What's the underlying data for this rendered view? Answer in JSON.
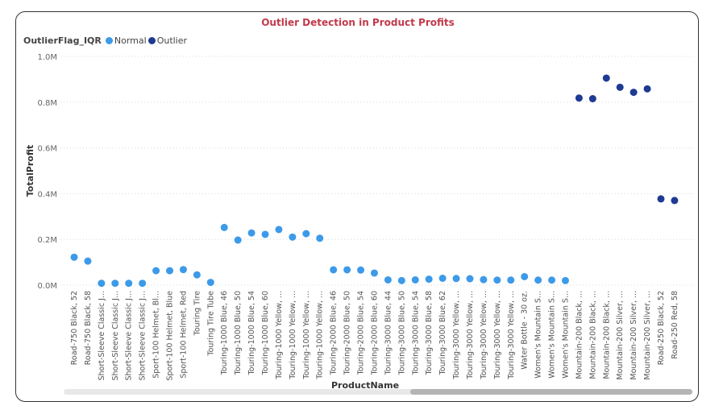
{
  "legend": {
    "title": "OutlierFlag_IQR",
    "items": [
      {
        "label": "Normal",
        "color": "#3c9ae8"
      },
      {
        "label": "Outlier",
        "color": "#1f3a93"
      }
    ]
  },
  "chart_data": {
    "type": "scatter",
    "title": "Outlier Detection in Product Profits",
    "xlabel": "ProductName",
    "ylabel": "TotalProfit",
    "ylim": [
      0,
      1000000
    ],
    "yticks": [
      0,
      200000,
      400000,
      600000,
      800000,
      1000000
    ],
    "ytick_labels": [
      "0.0M",
      "0.2M",
      "0.4M",
      "0.6M",
      "0.8M",
      "1.0M"
    ],
    "grid": true,
    "legend_position": "top-left",
    "categories": [
      "Road-750 Black, 52",
      "Road-750 Black, 58",
      "Short-Sleeve Classic J...",
      "Short-Sleeve Classic J...",
      "Short-Sleeve Classic J...",
      "Short-Sleeve Classic J...",
      "Sport-100 Helmet, Bl...",
      "Sport-100 Helmet, Blue",
      "Sport-100 Helmet, Red",
      "Touring Tire",
      "Touring Tire Tube",
      "Touring-1000 Blue, 46",
      "Touring-1000 Blue, 50",
      "Touring-1000 Blue, 54",
      "Touring-1000 Blue, 60",
      "Touring-1000 Yellow, ...",
      "Touring-1000 Yellow, ...",
      "Touring-1000 Yellow, ...",
      "Touring-1000 Yellow, ...",
      "Touring-2000 Blue, 46",
      "Touring-2000 Blue, 50",
      "Touring-2000 Blue, 54",
      "Touring-2000 Blue, 60",
      "Touring-3000 Blue, 44",
      "Touring-3000 Blue, 50",
      "Touring-3000 Blue, 54",
      "Touring-3000 Blue, 58",
      "Touring-3000 Blue, 62",
      "Touring-3000 Yellow, ...",
      "Touring-3000 Yellow, ...",
      "Touring-3000 Yellow, ...",
      "Touring-3000 Yellow, ...",
      "Touring-3000 Yellow, ...",
      "Water Bottle - 30 oz.",
      "Women's Mountain S...",
      "Women's Mountain S...",
      "Women's Mountain S...",
      "Mountain-200 Black, ...",
      "Mountain-200 Black, ...",
      "Mountain-200 Black, ...",
      "Mountain-200 Silver, ...",
      "Mountain-200 Silver, ...",
      "Mountain-200 Silver, ...",
      "Road-250 Black, 52",
      "Road-250 Red, 58"
    ],
    "values": [
      122000,
      105000,
      8000,
      8000,
      8000,
      8000,
      63000,
      63000,
      68000,
      45000,
      12000,
      252000,
      197000,
      228000,
      222000,
      243000,
      210000,
      225000,
      205000,
      67000,
      67000,
      66000,
      53000,
      23000,
      20000,
      23000,
      26000,
      30000,
      29000,
      28000,
      24000,
      22000,
      22000,
      37000,
      22000,
      22000,
      20000,
      818000,
      815000,
      905000,
      865000,
      843000,
      858000,
      377000,
      370000
    ],
    "flags": [
      "Normal",
      "Normal",
      "Normal",
      "Normal",
      "Normal",
      "Normal",
      "Normal",
      "Normal",
      "Normal",
      "Normal",
      "Normal",
      "Normal",
      "Normal",
      "Normal",
      "Normal",
      "Normal",
      "Normal",
      "Normal",
      "Normal",
      "Normal",
      "Normal",
      "Normal",
      "Normal",
      "Normal",
      "Normal",
      "Normal",
      "Normal",
      "Normal",
      "Normal",
      "Normal",
      "Normal",
      "Normal",
      "Normal",
      "Normal",
      "Normal",
      "Normal",
      "Normal",
      "Outlier",
      "Outlier",
      "Outlier",
      "Outlier",
      "Outlier",
      "Outlier",
      "Outlier",
      "Outlier"
    ]
  }
}
